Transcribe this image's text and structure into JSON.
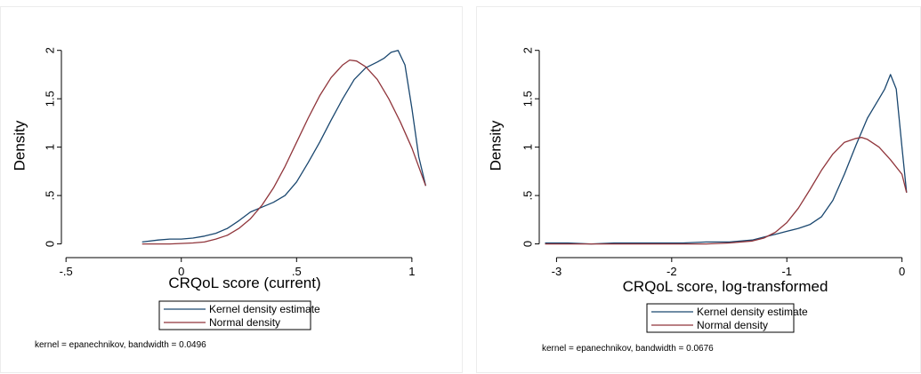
{
  "chart_data": [
    {
      "type": "line",
      "xlabel": "CRQoL score (current)",
      "ylabel": "Density",
      "xlim": [
        -0.52,
        1.07
      ],
      "ylim": [
        -0.05,
        2.08
      ],
      "x_ticks": [
        -0.5,
        0,
        0.5,
        1
      ],
      "x_tick_labels": [
        "-.5",
        "0",
        ".5",
        "1"
      ],
      "y_ticks": [
        0,
        0.5,
        1,
        1.5,
        2
      ],
      "y_tick_labels": [
        "0",
        ".5",
        "1",
        "1.5",
        "2"
      ],
      "legend_position": "below",
      "note": "kernel = epanechnikov, bandwidth = 0.0496",
      "grid": false,
      "series": [
        {
          "name": "Kernel density estimate",
          "color": "#1a476f",
          "points": [
            [
              -0.17,
              0.02
            ],
            [
              -0.1,
              0.04
            ],
            [
              -0.05,
              0.05
            ],
            [
              0.0,
              0.05
            ],
            [
              0.05,
              0.06
            ],
            [
              0.1,
              0.08
            ],
            [
              0.15,
              0.11
            ],
            [
              0.2,
              0.16
            ],
            [
              0.25,
              0.24
            ],
            [
              0.3,
              0.33
            ],
            [
              0.35,
              0.38
            ],
            [
              0.4,
              0.43
            ],
            [
              0.45,
              0.5
            ],
            [
              0.5,
              0.64
            ],
            [
              0.55,
              0.84
            ],
            [
              0.6,
              1.05
            ],
            [
              0.65,
              1.28
            ],
            [
              0.7,
              1.5
            ],
            [
              0.75,
              1.7
            ],
            [
              0.8,
              1.82
            ],
            [
              0.85,
              1.88
            ],
            [
              0.88,
              1.92
            ],
            [
              0.91,
              1.98
            ],
            [
              0.94,
              2.0
            ],
            [
              0.97,
              1.85
            ],
            [
              1.0,
              1.4
            ],
            [
              1.03,
              0.9
            ],
            [
              1.06,
              0.6
            ]
          ]
        },
        {
          "name": "Normal density",
          "color": "#90353b",
          "points": [
            [
              -0.17,
              0.0
            ],
            [
              -0.05,
              0.0
            ],
            [
              0.05,
              0.01
            ],
            [
              0.1,
              0.02
            ],
            [
              0.15,
              0.05
            ],
            [
              0.2,
              0.09
            ],
            [
              0.25,
              0.16
            ],
            [
              0.3,
              0.26
            ],
            [
              0.35,
              0.4
            ],
            [
              0.4,
              0.58
            ],
            [
              0.45,
              0.8
            ],
            [
              0.5,
              1.05
            ],
            [
              0.55,
              1.3
            ],
            [
              0.6,
              1.53
            ],
            [
              0.65,
              1.72
            ],
            [
              0.7,
              1.85
            ],
            [
              0.73,
              1.9
            ],
            [
              0.76,
              1.89
            ],
            [
              0.8,
              1.83
            ],
            [
              0.85,
              1.7
            ],
            [
              0.9,
              1.5
            ],
            [
              0.95,
              1.26
            ],
            [
              1.0,
              0.99
            ],
            [
              1.06,
              0.6
            ]
          ]
        }
      ]
    },
    {
      "type": "line",
      "xlabel": "CRQoL score, log-transformed",
      "ylabel": "Density",
      "xlim": [
        -3.15,
        0.08
      ],
      "ylim": [
        -0.05,
        2.08
      ],
      "x_ticks": [
        -3,
        -2,
        -1,
        0
      ],
      "x_tick_labels": [
        "-3",
        "-2",
        "-1",
        "0"
      ],
      "y_ticks": [
        0,
        0.5,
        1,
        1.5,
        2
      ],
      "y_tick_labels": [
        "0",
        ".5",
        "1",
        "1.5",
        "2"
      ],
      "legend_position": "below",
      "note": "kernel = epanechnikov, bandwidth = 0.0676",
      "grid": false,
      "series": [
        {
          "name": "Kernel density estimate",
          "color": "#1a476f",
          "points": [
            [
              -3.1,
              0.01
            ],
            [
              -2.9,
              0.01
            ],
            [
              -2.7,
              0.0
            ],
            [
              -2.5,
              0.01
            ],
            [
              -2.3,
              0.01
            ],
            [
              -2.1,
              0.01
            ],
            [
              -1.9,
              0.01
            ],
            [
              -1.7,
              0.02
            ],
            [
              -1.5,
              0.02
            ],
            [
              -1.3,
              0.04
            ],
            [
              -1.2,
              0.07
            ],
            [
              -1.1,
              0.1
            ],
            [
              -1.0,
              0.13
            ],
            [
              -0.9,
              0.16
            ],
            [
              -0.8,
              0.2
            ],
            [
              -0.7,
              0.28
            ],
            [
              -0.6,
              0.45
            ],
            [
              -0.5,
              0.72
            ],
            [
              -0.4,
              1.02
            ],
            [
              -0.3,
              1.3
            ],
            [
              -0.2,
              1.5
            ],
            [
              -0.15,
              1.6
            ],
            [
              -0.1,
              1.75
            ],
            [
              -0.05,
              1.6
            ],
            [
              0.0,
              1.0
            ],
            [
              0.04,
              0.53
            ]
          ]
        },
        {
          "name": "Normal density",
          "color": "#90353b",
          "points": [
            [
              -3.1,
              0.0
            ],
            [
              -2.5,
              0.0
            ],
            [
              -2.0,
              0.0
            ],
            [
              -1.7,
              0.0
            ],
            [
              -1.5,
              0.01
            ],
            [
              -1.3,
              0.03
            ],
            [
              -1.2,
              0.06
            ],
            [
              -1.1,
              0.12
            ],
            [
              -1.0,
              0.22
            ],
            [
              -0.9,
              0.37
            ],
            [
              -0.8,
              0.56
            ],
            [
              -0.7,
              0.76
            ],
            [
              -0.6,
              0.93
            ],
            [
              -0.5,
              1.05
            ],
            [
              -0.4,
              1.09
            ],
            [
              -0.35,
              1.1
            ],
            [
              -0.3,
              1.08
            ],
            [
              -0.2,
              1.0
            ],
            [
              -0.1,
              0.87
            ],
            [
              0.0,
              0.72
            ],
            [
              0.04,
              0.53
            ]
          ]
        }
      ]
    }
  ]
}
